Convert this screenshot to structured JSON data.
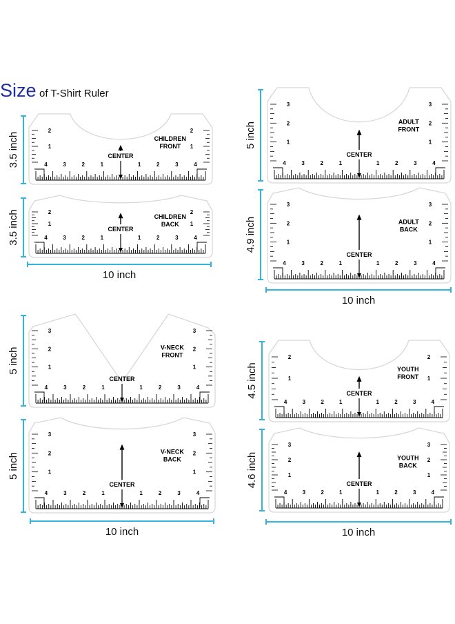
{
  "title": {
    "main": "Size",
    "sub": "of T-Shirt Ruler"
  },
  "center_label": "CENTER",
  "colors": {
    "dimension": "#33b3df",
    "title": "#1f2f9c",
    "ruler_outline": "#d8d8d8",
    "ink": "#000000"
  },
  "scale_numbers": [
    "1",
    "2",
    "3",
    "4"
  ],
  "rulers": [
    {
      "id": "children-front",
      "label": [
        "CHILDREN",
        "FRONT"
      ],
      "height": "3.5 inch",
      "neck": "scoop"
    },
    {
      "id": "children-back",
      "label": [
        "CHILDREN",
        "BACK"
      ],
      "height": "3.5 inch",
      "neck": "shallow"
    },
    {
      "id": "adult-front",
      "label": [
        "ADULT",
        "FRONT"
      ],
      "height": "5 inch",
      "neck": "scoop"
    },
    {
      "id": "adult-back",
      "label": [
        "ADULT",
        "BACK"
      ],
      "height": "4.9 inch",
      "neck": "shallow"
    },
    {
      "id": "vneck-front",
      "label": [
        "V-NECK",
        "FRONT"
      ],
      "height": "5 inch",
      "neck": "v"
    },
    {
      "id": "vneck-back",
      "label": [
        "V-NECK",
        "BACK"
      ],
      "height": "5 inch",
      "neck": "shallow"
    },
    {
      "id": "youth-front",
      "label": [
        "YOUTH",
        "FRONT"
      ],
      "height": "4.5 inch",
      "neck": "scoop"
    },
    {
      "id": "youth-back",
      "label": [
        "YOUTH",
        "BACK"
      ],
      "height": "4.6 inch",
      "neck": "shallow"
    }
  ],
  "width_labels": {
    "left_top": "10 inch",
    "right_top": "10 inch",
    "left_bottom": "10 inch",
    "right_bottom": "10 inch"
  }
}
